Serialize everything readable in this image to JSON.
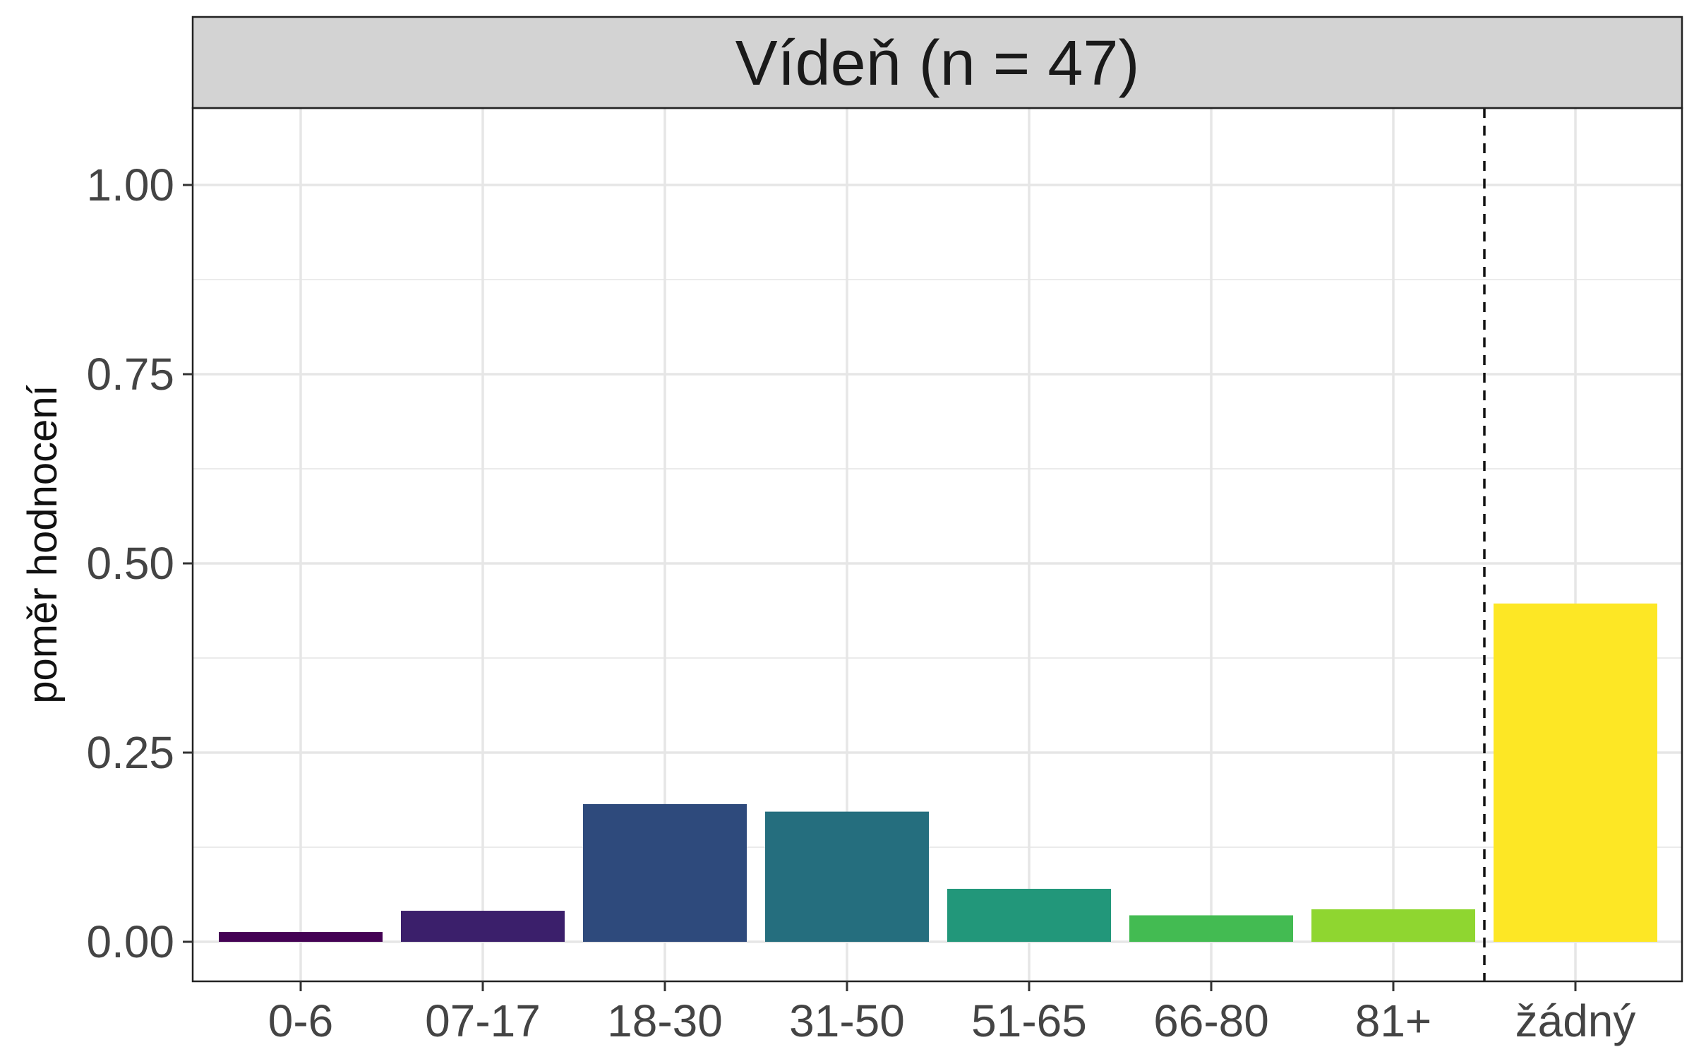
{
  "chart_data": {
    "type": "bar",
    "facet_title": "Vídeň (n = 47)",
    "title": "",
    "xlabel": "",
    "ylabel": "poměr hodnocení",
    "categories": [
      "0-6",
      "07-17",
      "18-30",
      "31-50",
      "51-65",
      "66-80",
      "81+",
      "žádný"
    ],
    "values": [
      0.013,
      0.041,
      0.182,
      0.172,
      0.07,
      0.035,
      0.043,
      0.447
    ],
    "colors": [
      "#440154",
      "#3B1F6B",
      "#2E4A7C",
      "#256E7E",
      "#22977A",
      "#43BB52",
      "#8FD630",
      "#FDE725"
    ],
    "ylim": [
      0,
      1.1
    ],
    "yticks": [
      0,
      0.25,
      0.5,
      0.75,
      1.0
    ],
    "ytick_labels": [
      "0.00",
      "0.25",
      "0.50",
      "0.75",
      "1.00"
    ],
    "y_minor_gridlines": [
      0.125,
      0.375,
      0.625,
      0.875
    ],
    "grid": true,
    "legend": "none",
    "dashed_separator": "between 81+ and žádný"
  }
}
